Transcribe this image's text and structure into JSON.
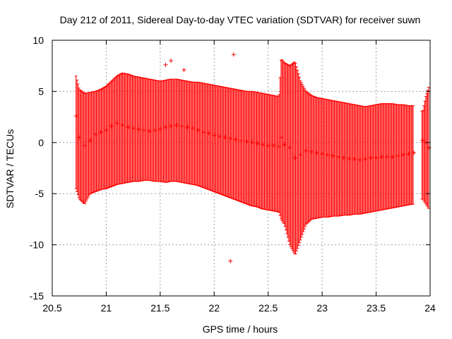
{
  "chart_data": {
    "type": "scatter",
    "title": "Day 212 of 2011, Sidereal Day-to-day VTEC variation (SDTVAR) for receiver suwn",
    "xlabel": "GPS time / hours",
    "ylabel": "SDTVAR / TECUs",
    "xlim": [
      20.5,
      24
    ],
    "ylim": [
      -15,
      10
    ],
    "x_ticks": [
      20.5,
      21,
      21.5,
      22,
      22.5,
      23,
      23.5,
      24
    ],
    "y_ticks": [
      -15,
      -10,
      -5,
      0,
      5,
      10
    ],
    "x_tick_labels": [
      "20.5",
      "21",
      "21.5",
      "22",
      "22.5",
      "23",
      "23.5",
      "24"
    ],
    "y_tick_labels": [
      "-15",
      "-10",
      "-5",
      "0",
      "5",
      "10"
    ],
    "grid": true,
    "series_color": "#ff0000",
    "series": [
      {
        "name": "SDTVAR",
        "marker": "plus with error bars",
        "x": [
          20.72,
          20.75,
          20.8,
          20.85,
          20.9,
          20.95,
          21.0,
          21.05,
          21.1,
          21.15,
          21.2,
          21.25,
          21.3,
          21.35,
          21.4,
          21.45,
          21.5,
          21.55,
          21.6,
          21.65,
          21.7,
          21.75,
          21.8,
          21.85,
          21.9,
          21.95,
          22.0,
          22.05,
          22.1,
          22.15,
          22.2,
          22.25,
          22.3,
          22.35,
          22.4,
          22.45,
          22.5,
          22.55,
          22.6,
          22.62,
          22.65,
          22.7,
          22.75,
          22.8,
          22.85,
          22.9,
          22.95,
          23.0,
          23.05,
          23.1,
          23.15,
          23.2,
          23.25,
          23.3,
          23.35,
          23.4,
          23.45,
          23.5,
          23.55,
          23.6,
          23.65,
          23.7,
          23.75,
          23.8,
          23.85,
          23.93,
          23.96,
          23.99
        ],
        "y": [
          2.6,
          0.5,
          -0.3,
          0.2,
          0.8,
          1.0,
          1.2,
          1.6,
          1.9,
          1.7,
          1.5,
          1.4,
          1.3,
          1.2,
          1.1,
          1.2,
          1.3,
          1.5,
          1.6,
          1.7,
          1.6,
          1.5,
          1.4,
          1.2,
          1.0,
          0.9,
          0.7,
          0.6,
          0.5,
          0.4,
          0.3,
          0.2,
          0.1,
          0.0,
          -0.1,
          -0.2,
          -0.3,
          -0.3,
          -0.4,
          0.5,
          -0.2,
          -0.5,
          -1.5,
          -1.2,
          -0.8,
          -0.9,
          -1.0,
          -1.1,
          -1.2,
          -1.3,
          -1.4,
          -1.5,
          -1.6,
          -1.6,
          -1.7,
          -1.6,
          -1.5,
          -1.5,
          -1.4,
          -1.4,
          -1.4,
          -1.3,
          -1.2,
          -1.1,
          -1.0,
          0.2,
          0.0,
          -0.5
        ],
        "y_low": [
          -4.5,
          -5.5,
          -6.0,
          -5.0,
          -4.8,
          -4.6,
          -4.5,
          -4.3,
          -4.1,
          -4.0,
          -3.9,
          -3.8,
          -3.8,
          -3.7,
          -3.7,
          -3.8,
          -3.8,
          -3.9,
          -3.8,
          -3.8,
          -3.9,
          -4.0,
          -4.1,
          -4.2,
          -4.4,
          -4.6,
          -4.8,
          -5.0,
          -5.2,
          -5.4,
          -5.6,
          -5.8,
          -6.0,
          -6.2,
          -6.3,
          -6.5,
          -6.6,
          -6.7,
          -6.8,
          -7.5,
          -8.0,
          -10.0,
          -11.0,
          -9.5,
          -8.0,
          -7.5,
          -7.4,
          -7.3,
          -7.3,
          -7.2,
          -7.2,
          -7.1,
          -7.1,
          -7.0,
          -7.0,
          -6.9,
          -6.8,
          -6.7,
          -6.6,
          -6.5,
          -6.4,
          -6.3,
          -6.2,
          -6.1,
          -6.0,
          -5.5,
          -6.0,
          -6.5
        ],
        "y_high": [
          6.5,
          5.2,
          4.8,
          4.9,
          5.0,
          5.2,
          5.5,
          6.0,
          6.5,
          6.8,
          6.7,
          6.5,
          6.4,
          6.3,
          6.2,
          6.1,
          6.0,
          6.1,
          6.2,
          6.2,
          6.1,
          6.0,
          5.9,
          5.9,
          5.8,
          5.7,
          5.6,
          5.5,
          5.4,
          5.3,
          5.2,
          5.1,
          5.0,
          5.0,
          4.9,
          4.8,
          4.7,
          4.6,
          4.5,
          8.2,
          7.8,
          7.5,
          7.9,
          6.0,
          5.0,
          4.6,
          4.4,
          4.3,
          4.2,
          4.1,
          4.0,
          3.9,
          3.8,
          3.7,
          3.6,
          3.5,
          3.6,
          3.7,
          3.8,
          3.8,
          3.8,
          3.7,
          3.7,
          3.6,
          3.6,
          3.0,
          4.5,
          5.5
        ]
      }
    ],
    "outliers": [
      {
        "x": 21.6,
        "y": 8.0
      },
      {
        "x": 21.55,
        "y": 7.6
      },
      {
        "x": 22.18,
        "y": 8.6
      },
      {
        "x": 22.15,
        "y": -11.6
      },
      {
        "x": 21.72,
        "y": 7.1
      }
    ]
  }
}
